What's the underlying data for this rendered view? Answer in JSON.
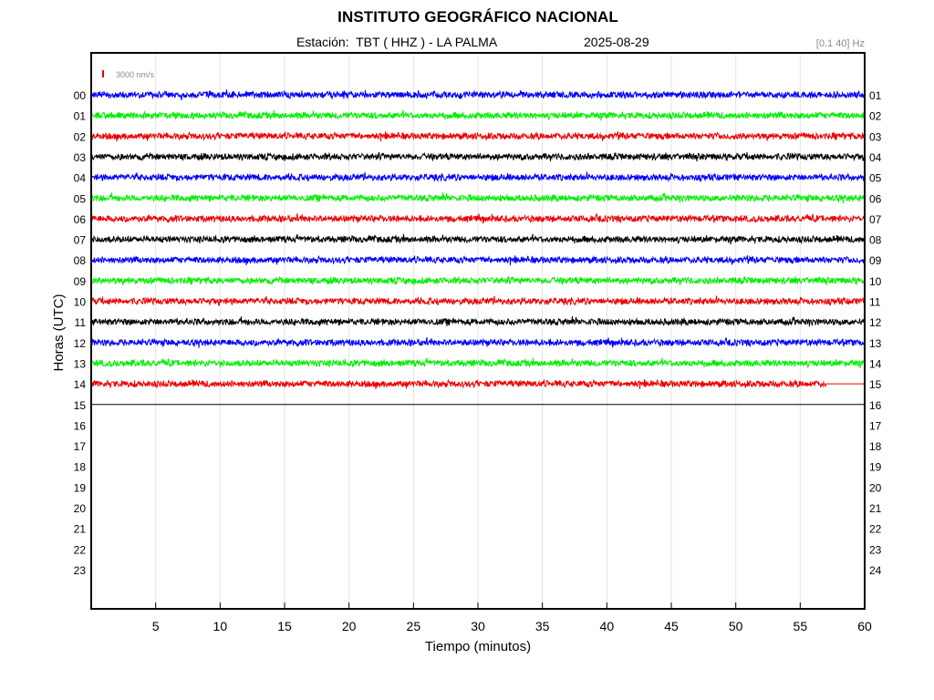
{
  "chart_data": {
    "type": "line",
    "title": "INSTITUTO GEOGRÁFICO NACIONAL",
    "station": "Estación:  TBT ( HHZ ) - LA PALMA",
    "date": "2025-08-29",
    "filter": "[0.1 40] Hz",
    "scale_label": "3000 nm/s",
    "scale_color": "#e00000",
    "xlabel": "Tiempo (minutos)",
    "ylabel": "Horas (UTC)",
    "xlim": [
      0,
      60
    ],
    "xticks": [
      5,
      10,
      15,
      20,
      25,
      30,
      35,
      40,
      45,
      50,
      55,
      60
    ],
    "grid": true,
    "left_labels": [
      "00",
      "01",
      "02",
      "03",
      "04",
      "05",
      "06",
      "07",
      "08",
      "09",
      "10",
      "11",
      "12",
      "13",
      "14",
      "15",
      "16",
      "17",
      "18",
      "19",
      "20",
      "21",
      "22",
      "23"
    ],
    "right_labels": [
      "01",
      "02",
      "03",
      "04",
      "05",
      "06",
      "07",
      "08",
      "09",
      "10",
      "11",
      "12",
      "13",
      "14",
      "15",
      "16",
      "17",
      "18",
      "19",
      "20",
      "21",
      "22",
      "23",
      "24"
    ],
    "colors": [
      "#0000ff",
      "#00ee00",
      "#ee0000",
      "#000000"
    ],
    "series": [
      {
        "hour": 0,
        "color": "#0000ff",
        "end_minute": 60
      },
      {
        "hour": 1,
        "color": "#00ee00",
        "end_minute": 60
      },
      {
        "hour": 2,
        "color": "#ee0000",
        "end_minute": 60
      },
      {
        "hour": 3,
        "color": "#000000",
        "end_minute": 60
      },
      {
        "hour": 4,
        "color": "#0000ff",
        "end_minute": 60
      },
      {
        "hour": 5,
        "color": "#00ee00",
        "end_minute": 60
      },
      {
        "hour": 6,
        "color": "#ee0000",
        "end_minute": 60
      },
      {
        "hour": 7,
        "color": "#000000",
        "end_minute": 60
      },
      {
        "hour": 8,
        "color": "#0000ff",
        "end_minute": 60
      },
      {
        "hour": 9,
        "color": "#00ee00",
        "end_minute": 60
      },
      {
        "hour": 10,
        "color": "#ee0000",
        "end_minute": 60
      },
      {
        "hour": 11,
        "color": "#000000",
        "end_minute": 60
      },
      {
        "hour": 12,
        "color": "#0000ff",
        "end_minute": 60
      },
      {
        "hour": 13,
        "color": "#00ee00",
        "end_minute": 60
      },
      {
        "hour": 14,
        "color": "#ee0000",
        "end_minute": 57
      },
      {
        "hour": 15,
        "color": "#000000",
        "end_minute": 60,
        "flat": true
      }
    ]
  }
}
